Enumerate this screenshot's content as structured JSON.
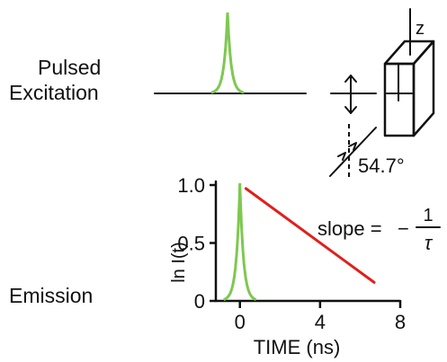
{
  "excitation": {
    "label_line1": "Pulsed",
    "label_line2": "Excitation"
  },
  "emission_label": "Emission",
  "polarizer": {
    "axis_label": "z",
    "angle_label": "54.7°"
  },
  "chart_data": {
    "type": "line",
    "xlabel": "TIME (ns)",
    "ylabel": "ln I(t)",
    "xlim": [
      -1.2,
      8
    ],
    "ylim": [
      0,
      1.0
    ],
    "x_ticks": [
      "0",
      "4",
      "8"
    ],
    "y_ticks": [
      "0",
      "0.5",
      "1.0"
    ],
    "series": [
      {
        "values": [
          [
            0.3,
            0.97
          ],
          [
            6.7,
            0.16
          ]
        ],
        "color": "#e0201c",
        "style": "solid"
      },
      {
        "values": "narrow excitation pulse centered at t = 0",
        "color": "#7ec850"
      }
    ],
    "annotation": {
      "text": "slope =",
      "fraction_numerator": "1",
      "fraction_denominator": "τ",
      "minus": "−"
    }
  },
  "colors": {
    "pulse": "#7ec850",
    "decay": "#e0201c",
    "ink": "#111111"
  }
}
